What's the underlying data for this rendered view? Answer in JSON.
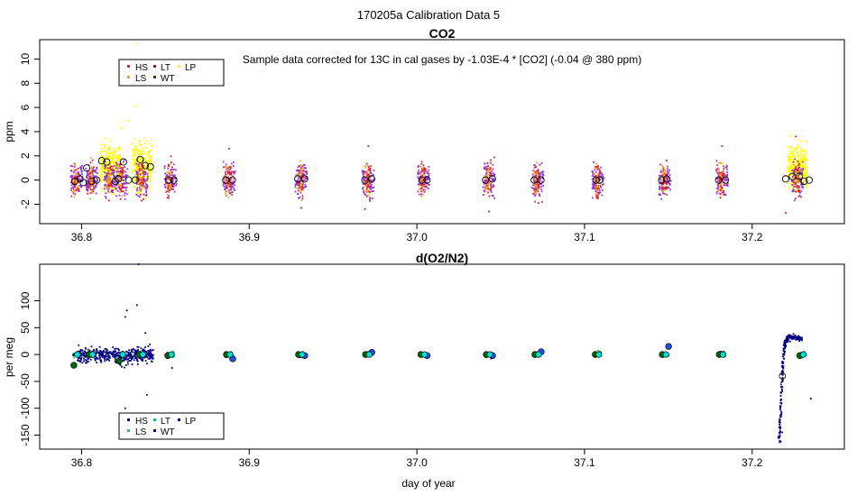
{
  "figure_title": "170205a   Calibration Data 5",
  "x_label": "day of year",
  "chart_data": [
    {
      "id": "co2",
      "type": "scatter",
      "title": "CO2",
      "annotation": "Sample data corrected for 13C in cal gases by -1.03E-4 * [CO2] (-0.04 @ 380 ppm)",
      "xlabel": "",
      "ylabel": "ppm",
      "xlim": [
        36.775,
        37.255
      ],
      "ylim": [
        -3.6,
        11.6
      ],
      "xticks": [
        36.8,
        36.9,
        37.0,
        37.1,
        37.2
      ],
      "xtick_labels": [
        "36.8",
        "36.9",
        "37.0",
        "37.1",
        "37.2"
      ],
      "yticks": [
        -2,
        0,
        2,
        4,
        6,
        8,
        10
      ],
      "ytick_labels": [
        "-2",
        "0",
        "2",
        "4",
        "6",
        "8",
        "10"
      ],
      "legend_position": "top-left",
      "legend": [
        {
          "label": "HS",
          "color": "#e31a1c"
        },
        {
          "label": "LT",
          "color": "#7a2a20"
        },
        {
          "label": "LP",
          "color": "#ffff00"
        },
        {
          "label": "LS",
          "color": "#f5a623"
        },
        {
          "label": "WT",
          "color": "#5a2a0a"
        }
      ],
      "colors": {
        "HS": "#e31a1c",
        "LS": "#f5a623",
        "LP": "#ffff00",
        "purple": "#9933cc",
        "circle": "#000000"
      },
      "clusters": [
        {
          "x": 36.797,
          "type": "normal"
        },
        {
          "x": 36.806,
          "type": "normal"
        },
        {
          "x": 36.817,
          "type": "lp"
        },
        {
          "x": 36.824,
          "type": "normal"
        },
        {
          "x": 36.836,
          "type": "lp"
        },
        {
          "x": 36.853,
          "type": "normal"
        },
        {
          "x": 36.888,
          "type": "normal"
        },
        {
          "x": 36.931,
          "type": "normal"
        },
        {
          "x": 36.971,
          "type": "normal"
        },
        {
          "x": 37.004,
          "type": "normal"
        },
        {
          "x": 37.043,
          "type": "normal"
        },
        {
          "x": 37.072,
          "type": "normal"
        },
        {
          "x": 37.108,
          "type": "normal"
        },
        {
          "x": 37.148,
          "type": "normal"
        },
        {
          "x": 37.182,
          "type": "normal"
        },
        {
          "x": 37.227,
          "type": "lp"
        }
      ],
      "means": [
        {
          "x": 36.796,
          "y": -0.1
        },
        {
          "x": 36.799,
          "y": 0.1
        },
        {
          "x": 36.801,
          "y": -0.2
        },
        {
          "x": 36.803,
          "y": 1.0
        },
        {
          "x": 36.806,
          "y": -0.1
        },
        {
          "x": 36.809,
          "y": 0.0
        },
        {
          "x": 36.812,
          "y": 1.6
        },
        {
          "x": 36.815,
          "y": 1.5
        },
        {
          "x": 36.82,
          "y": -0.1
        },
        {
          "x": 36.822,
          "y": 0.1
        },
        {
          "x": 36.825,
          "y": 1.5
        },
        {
          "x": 36.828,
          "y": 0.0
        },
        {
          "x": 36.832,
          "y": 0.0
        },
        {
          "x": 36.835,
          "y": 1.7
        },
        {
          "x": 36.838,
          "y": 1.2
        },
        {
          "x": 36.841,
          "y": 1.1
        },
        {
          "x": 36.852,
          "y": 0.0
        },
        {
          "x": 36.855,
          "y": 0.0
        },
        {
          "x": 36.886,
          "y": 0.0
        },
        {
          "x": 36.89,
          "y": 0.0
        },
        {
          "x": 36.929,
          "y": 0.1
        },
        {
          "x": 36.933,
          "y": 0.1
        },
        {
          "x": 36.969,
          "y": 0.0
        },
        {
          "x": 36.973,
          "y": 0.1
        },
        {
          "x": 37.003,
          "y": 0.0
        },
        {
          "x": 37.006,
          "y": 0.0
        },
        {
          "x": 37.041,
          "y": 0.0
        },
        {
          "x": 37.045,
          "y": 0.1
        },
        {
          "x": 37.07,
          "y": 0.0
        },
        {
          "x": 37.074,
          "y": 0.0
        },
        {
          "x": 37.107,
          "y": 0.0
        },
        {
          "x": 37.109,
          "y": 0.0
        },
        {
          "x": 37.146,
          "y": 0.0
        },
        {
          "x": 37.149,
          "y": 0.1
        },
        {
          "x": 37.18,
          "y": 0.0
        },
        {
          "x": 37.184,
          "y": 0.0
        },
        {
          "x": 37.22,
          "y": 0.1
        },
        {
          "x": 37.224,
          "y": 0.3
        },
        {
          "x": 37.228,
          "y": 0.3
        },
        {
          "x": 37.231,
          "y": -0.1
        },
        {
          "x": 37.234,
          "y": 0.0
        }
      ],
      "outliers": [
        {
          "x": 36.833,
          "y": 11.3
        },
        {
          "x": 36.832,
          "y": 6.1
        },
        {
          "x": 36.828,
          "y": 4.9
        },
        {
          "x": 36.824,
          "y": 4.3
        },
        {
          "x": 36.888,
          "y": 2.6
        },
        {
          "x": 36.971,
          "y": 2.8
        },
        {
          "x": 37.182,
          "y": 2.8
        },
        {
          "x": 37.226,
          "y": 3.6
        },
        {
          "x": 36.931,
          "y": -2.3
        },
        {
          "x": 36.969,
          "y": -2.4
        },
        {
          "x": 37.043,
          "y": -2.6
        },
        {
          "x": 37.22,
          "y": -2.7
        }
      ]
    },
    {
      "id": "o2n2",
      "type": "scatter",
      "title": "d(O2/N2)",
      "xlabel": "day of year",
      "ylabel": "per meg",
      "xlim": [
        36.775,
        37.255
      ],
      "ylim": [
        -176,
        168
      ],
      "xticks": [
        36.8,
        36.9,
        37.0,
        37.1,
        37.2
      ],
      "xtick_labels": [
        "36.8",
        "36.9",
        "37.0",
        "37.1",
        "37.2"
      ],
      "yticks": [
        -150,
        -100,
        -50,
        0,
        50,
        100
      ],
      "ytick_labels": [
        "-150",
        "-100",
        "-50",
        "0",
        "50",
        "100"
      ],
      "legend_position": "bottom-left",
      "legend": [
        {
          "label": "HS",
          "color": "#000080"
        },
        {
          "label": "LT",
          "color": "#00cc66"
        },
        {
          "label": "LP",
          "color": "#000080"
        },
        {
          "label": "LS",
          "color": "#33cc33"
        },
        {
          "label": "WT",
          "color": "#000080"
        }
      ],
      "colors": {
        "navy": "#000080",
        "blue": "#1f4fd8",
        "green": "#22cc44",
        "cyan": "#00e0e0",
        "darkgreen": "#006400"
      },
      "clusters": [
        {
          "x": 36.797,
          "dots": [
            -20
          ]
        },
        {
          "x": 36.806,
          "dots": [
            0
          ]
        },
        {
          "x": 36.824,
          "dots": [
            -12
          ]
        },
        {
          "x": 36.836,
          "dots": [
            0
          ]
        },
        {
          "x": 36.853,
          "dots": [
            -2
          ]
        },
        {
          "x": 36.888,
          "dots": [
            0,
            -8
          ]
        },
        {
          "x": 36.931,
          "dots": [
            0,
            -2
          ]
        },
        {
          "x": 36.971,
          "dots": [
            0,
            4
          ]
        },
        {
          "x": 37.004,
          "dots": [
            0,
            -2
          ]
        },
        {
          "x": 37.043,
          "dots": [
            0,
            -2
          ]
        },
        {
          "x": 37.072,
          "dots": [
            0,
            5
          ]
        },
        {
          "x": 37.108,
          "dots": [
            0
          ]
        },
        {
          "x": 37.148,
          "dots": [
            0,
            15
          ]
        },
        {
          "x": 37.182,
          "dots": [
            0
          ]
        },
        {
          "x": 37.23,
          "dots": [
            -2
          ]
        }
      ],
      "spikes": [
        {
          "x": 36.834,
          "y": 168
        },
        {
          "x": 36.833,
          "y": 92
        },
        {
          "x": 36.827,
          "y": 82
        },
        {
          "x": 36.826,
          "y": 70
        },
        {
          "x": 36.838,
          "y": 40
        },
        {
          "x": 36.839,
          "y": -75
        },
        {
          "x": 36.826,
          "y": -100
        },
        {
          "x": 36.854,
          "y": -25
        },
        {
          "x": 37.235,
          "y": -82
        },
        {
          "x": 37.217,
          "y": -162
        },
        {
          "x": 37.218,
          "y": -145
        }
      ],
      "excursion": [
        {
          "x": 37.216,
          "y": -160
        },
        {
          "x": 37.217,
          "y": -110
        },
        {
          "x": 37.218,
          "y": -40
        },
        {
          "x": 37.219,
          "y": 10
        },
        {
          "x": 37.22,
          "y": 25
        },
        {
          "x": 37.222,
          "y": 32
        },
        {
          "x": 37.226,
          "y": 32
        },
        {
          "x": 37.23,
          "y": 30
        }
      ],
      "open_circle": {
        "x": 37.218,
        "y": -40
      }
    }
  ]
}
